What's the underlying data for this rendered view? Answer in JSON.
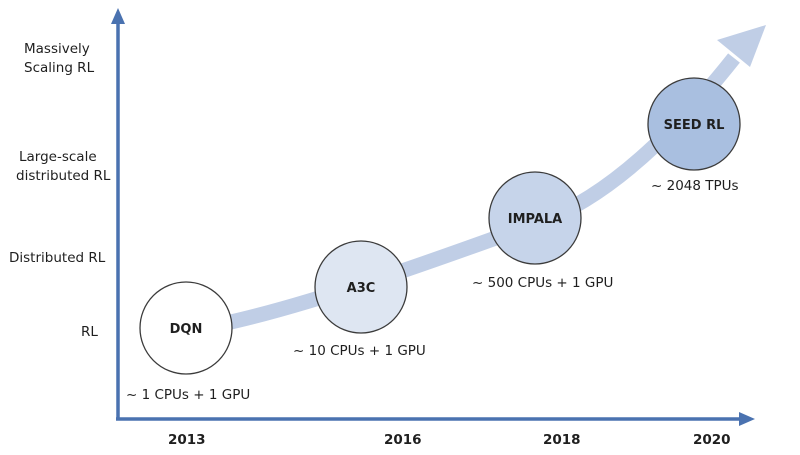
{
  "levels": {
    "massive": [
      "Massively",
      "Scaling RL"
    ],
    "large": [
      "Large-scale",
      "distributed RL"
    ],
    "distributed": "Distributed RL",
    "rl": "RL"
  },
  "years": [
    "2013",
    "2016",
    "2018",
    "2020"
  ],
  "milestones": [
    {
      "name": "DQN",
      "resources": "~ 1 CPUs + 1 GPU",
      "fill": "#ffffff"
    },
    {
      "name": "A3C",
      "resources": "~ 10 CPUs + 1 GPU",
      "fill": "#dee6f2"
    },
    {
      "name": "IMPALA",
      "resources": "~ 500 CPUs + 1 GPU",
      "fill": "#c6d4ea"
    },
    {
      "name": "SEED RL",
      "resources": "~  2048 TPUs",
      "fill": "#a9bfe0"
    }
  ],
  "colors": {
    "axis": "#4a72b0",
    "trend_arrow": "#c0cee6",
    "circle_stroke": "#3b3b3b"
  }
}
